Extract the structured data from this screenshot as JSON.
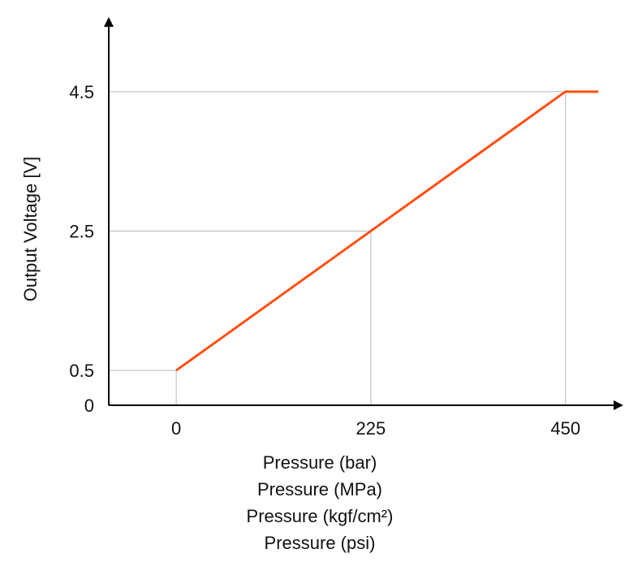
{
  "chart_data": {
    "type": "line",
    "title": "",
    "xlabel": "Pressure (bar)",
    "xlabel_lines": [
      "Pressure (bar)",
      "Pressure (MPa)",
      "Pressure (kgf/cm²)",
      "Pressure (psi)"
    ],
    "ylabel": "Output Voltage [V]",
    "x_ticks": [
      0,
      225,
      450
    ],
    "x_tick_labels": [
      "0",
      "225",
      "450"
    ],
    "y_ticks": [
      0,
      0.5,
      2.5,
      4.5
    ],
    "y_tick_labels": [
      "0",
      "0.5",
      "2.5",
      "4.5"
    ],
    "xlim": [
      -78,
      500
    ],
    "ylim": [
      0,
      5.5
    ],
    "grid": "guide lines at tick values",
    "series": [
      {
        "name": "Output Voltage",
        "color": "#ff4f14",
        "x": [
          0,
          225,
          450,
          488
        ],
        "y": [
          0.5,
          2.5,
          4.5,
          4.5
        ]
      }
    ],
    "guides": [
      {
        "x": 0,
        "y": 0.5
      },
      {
        "x": 225,
        "y": 2.5
      },
      {
        "x": 450,
        "y": 4.5
      }
    ]
  },
  "colors": {
    "line": "#ff4f14",
    "axis": "#000000",
    "guide": "#b8b8b8"
  }
}
